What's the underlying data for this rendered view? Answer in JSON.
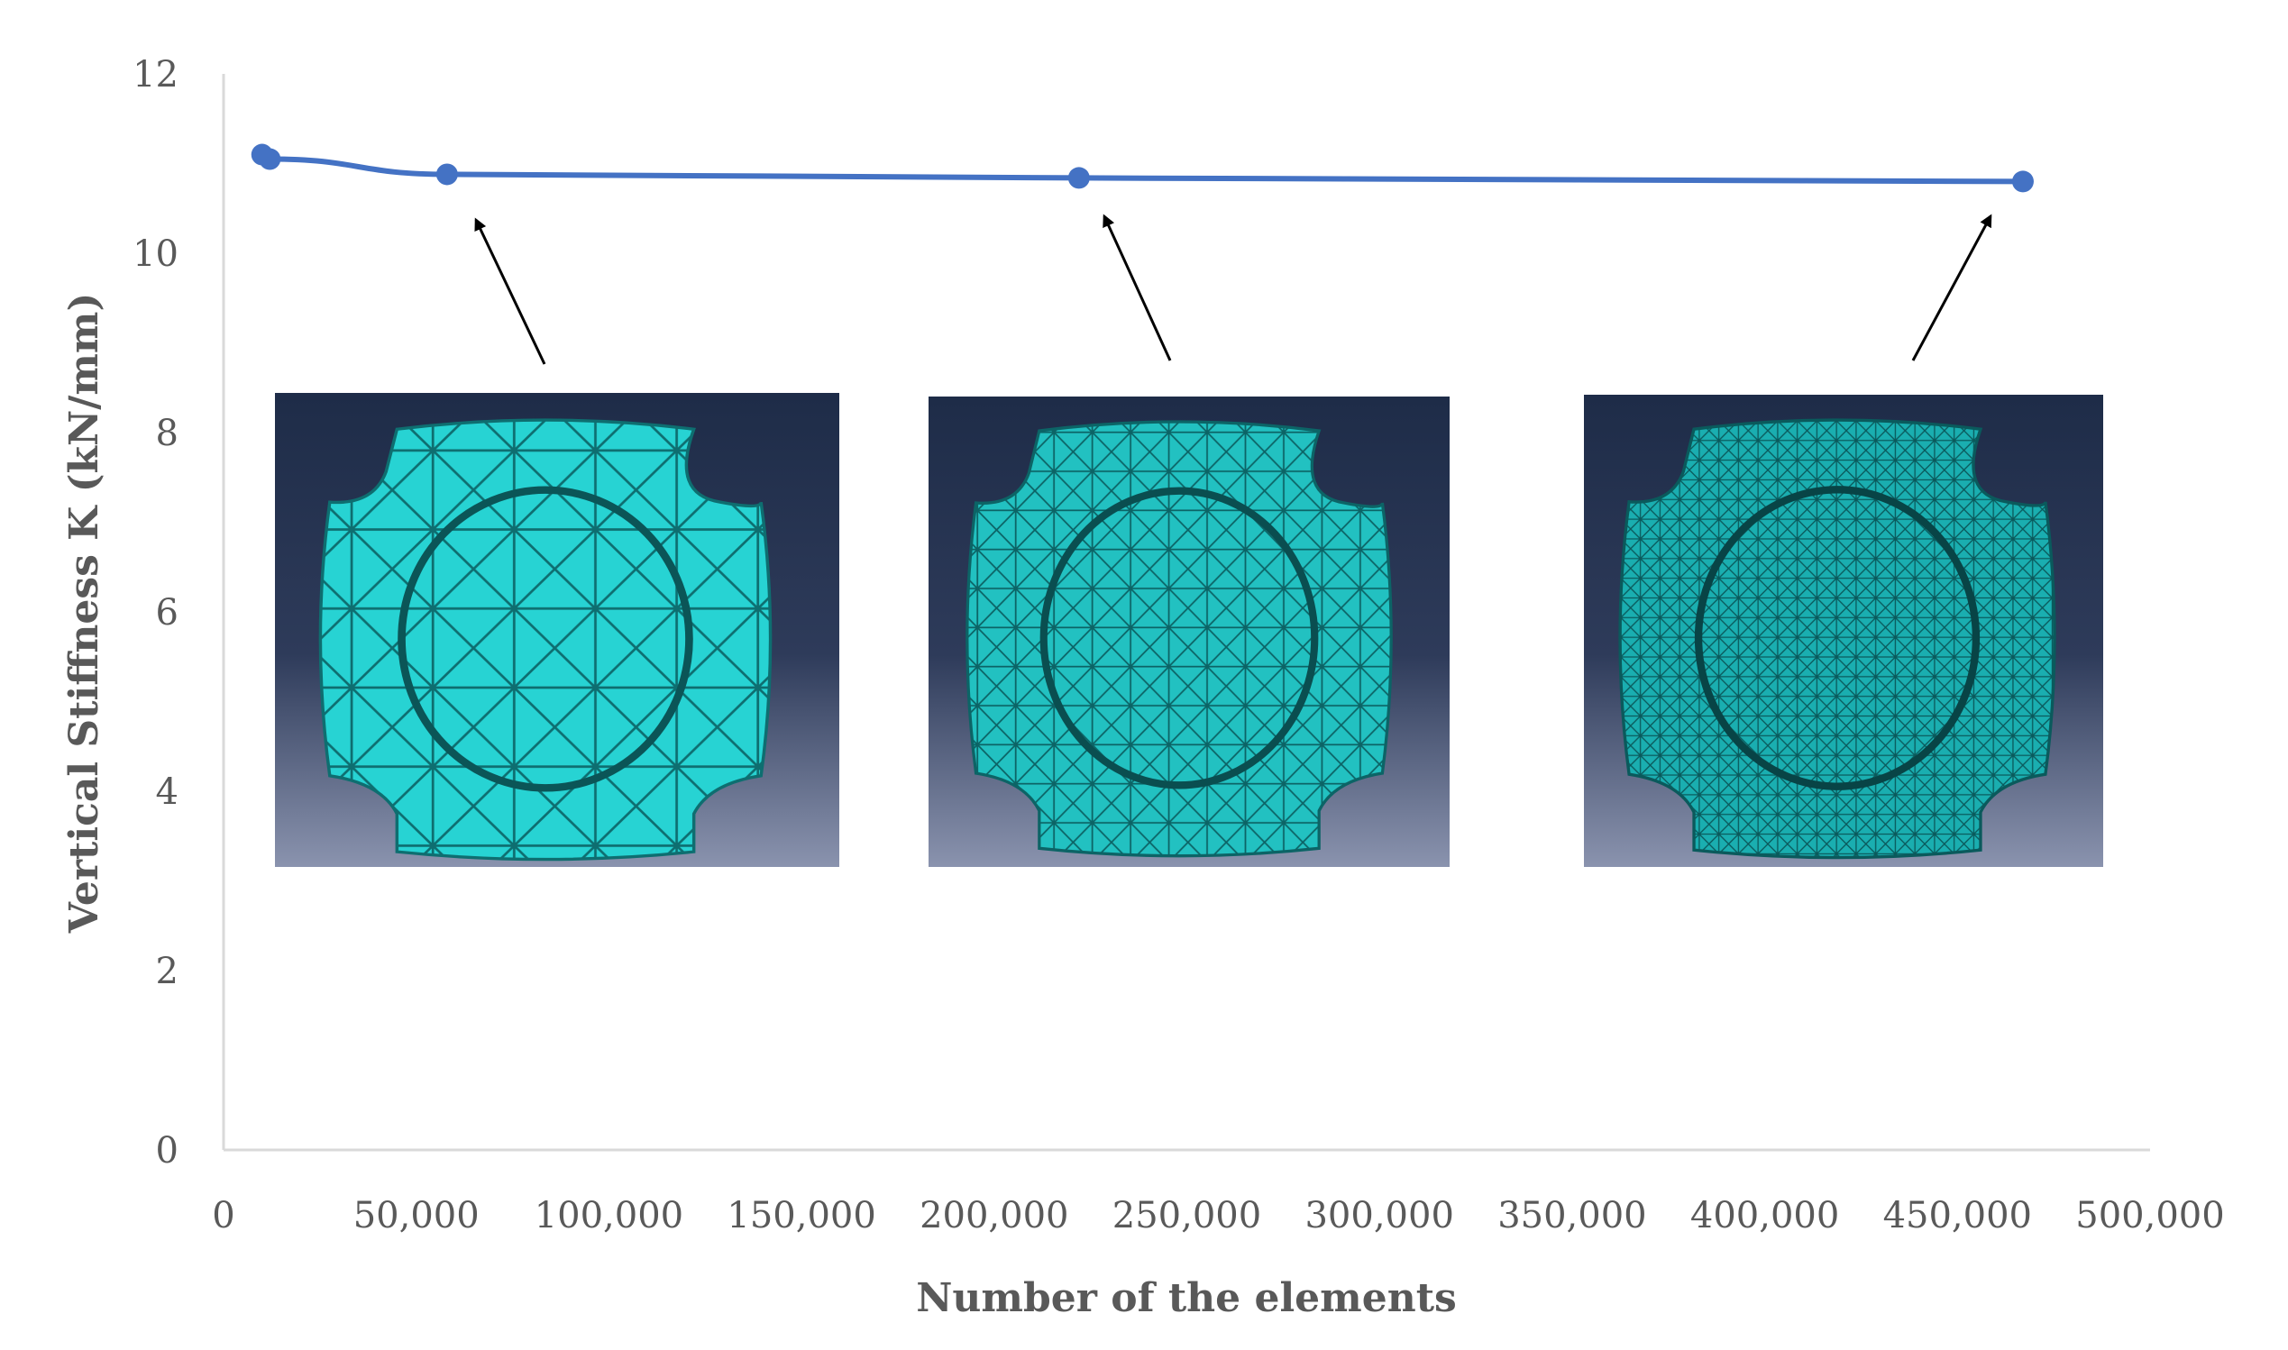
{
  "chart_data": {
    "type": "line",
    "xlabel": "Number of the elements",
    "ylabel": "Vertical Stiffness K (kN/mm)",
    "xlim": [
      0,
      500000
    ],
    "ylim": [
      0,
      12
    ],
    "x_tick_labels": [
      "0",
      "50,000",
      "100,000",
      "150,000",
      "200,000",
      "250,000",
      "300,000",
      "350,000",
      "400,000",
      "450,000",
      "500,000"
    ],
    "y_tick_labels": [
      "0",
      "2",
      "4",
      "6",
      "8",
      "10",
      "12"
    ],
    "grid": false,
    "legend": "none",
    "series": [
      {
        "color": "#4472C4",
        "x": [
          10000,
          12000,
          58000,
          222000,
          467000
        ],
        "y": [
          11.1,
          11.05,
          10.88,
          10.84,
          10.8
        ]
      }
    ],
    "insets": [
      {
        "description": "coarse mesh model",
        "points_to_x": 63000
      },
      {
        "description": "medium mesh model",
        "points_to_x": 225000
      },
      {
        "description": "fine mesh model",
        "points_to_x": 458000
      }
    ],
    "colors": {
      "series": "#4472C4",
      "axis": "#D9D9D9",
      "text": "#595959",
      "mesh": "#22C6C6",
      "inset_bg_top": "#1E2C48",
      "inset_bg_bottom": "#8A93AE"
    }
  }
}
